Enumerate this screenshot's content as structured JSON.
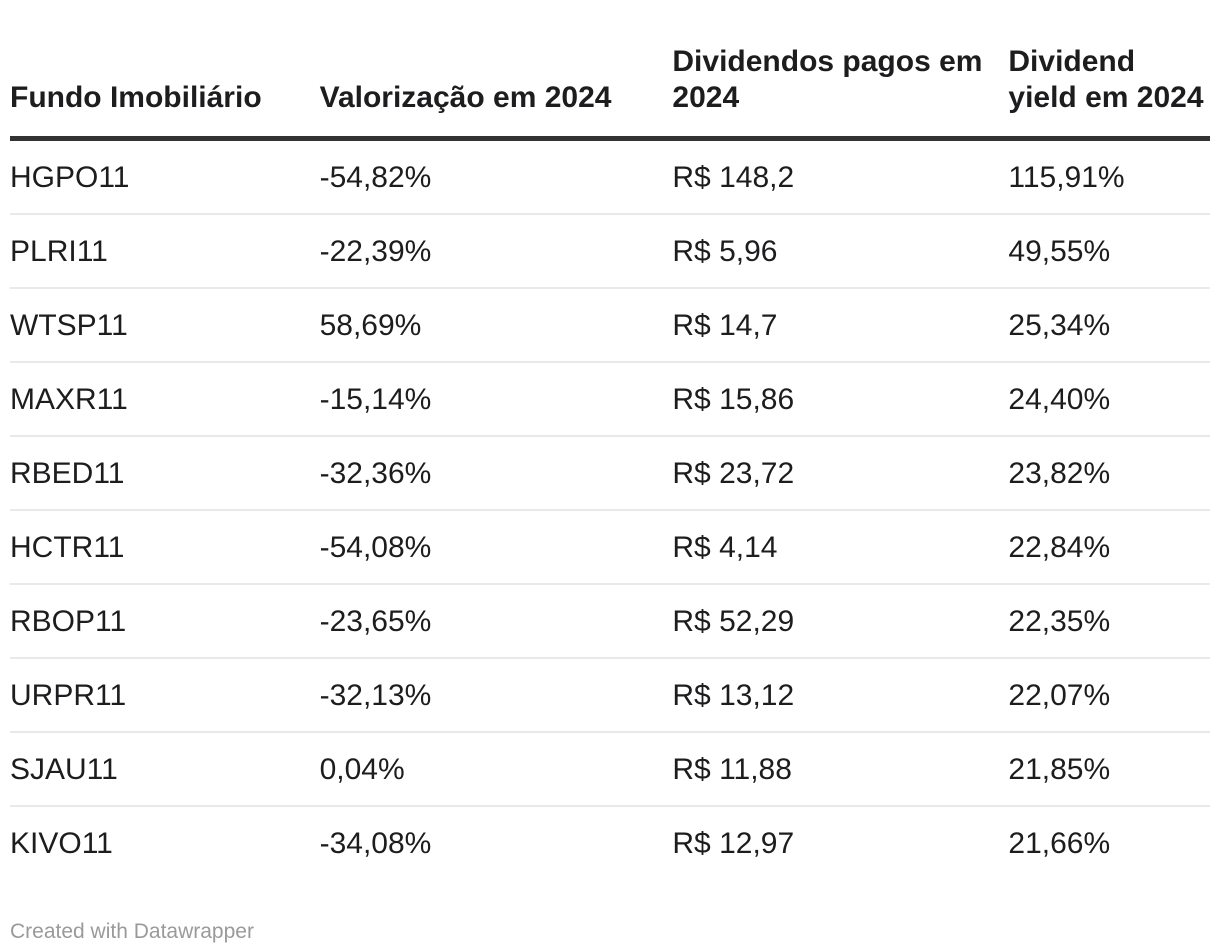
{
  "chart_data": {
    "type": "table",
    "columns": [
      "Fundo Imobiliário",
      "Valorização em 2024",
      "Dividendos pagos em 2024",
      "Dividend yield em 2024"
    ],
    "column_keys": [
      "fundo-imobiliario",
      "valorizacao-2024",
      "dividendos-pagos-2024",
      "dividend-yield-2024"
    ],
    "rows": [
      [
        "HGPO11",
        "-54,82%",
        "R$ 148,2",
        "115,91%"
      ],
      [
        "PLRI11",
        "-22,39%",
        "R$ 5,96",
        "49,55%"
      ],
      [
        "WTSP11",
        "58,69%",
        "R$ 14,7",
        "25,34%"
      ],
      [
        "MAXR11",
        "-15,14%",
        "R$ 15,86",
        "24,40%"
      ],
      [
        "RBED11",
        "-32,36%",
        "R$ 23,72",
        "23,82%"
      ],
      [
        "HCTR11",
        "-54,08%",
        "R$ 4,14",
        "22,84%"
      ],
      [
        "RBOP11",
        "-23,65%",
        "R$ 52,29",
        "22,35%"
      ],
      [
        "URPR11",
        "-32,13%",
        "R$ 13,12",
        "22,07%"
      ],
      [
        "SJAU11",
        "0,04%",
        "R$ 11,88",
        "21,85%"
      ],
      [
        "KIVO11",
        "-34,08%",
        "R$ 12,97",
        "21,66%"
      ]
    ],
    "layout_hints": {
      "header_rule": "thick dark line under header",
      "row_separators": "thin light gray lines",
      "alignment": "all columns left-aligned",
      "grid": "horizontal only"
    }
  },
  "footer": {
    "attribution": "Created with Datawrapper"
  },
  "colors": {
    "background": "#ffffff",
    "text": "#1d1d1f",
    "header_border": "#333333",
    "row_border": "#e9e9e9",
    "attribution_text": "#9a9a9a"
  }
}
